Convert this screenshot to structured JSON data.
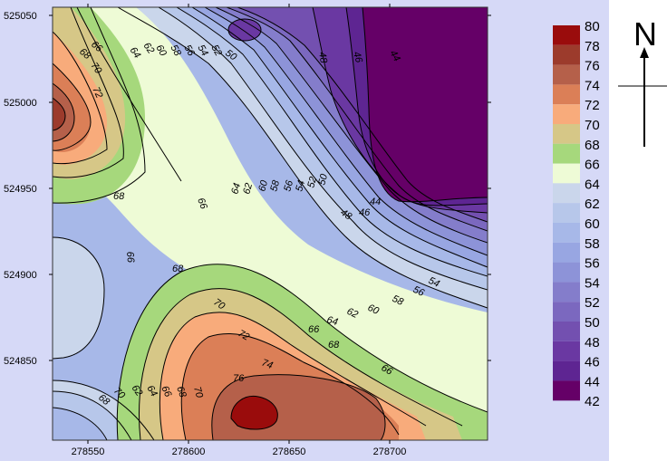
{
  "map": {
    "x_ticks": [
      "278550",
      "278600",
      "278650",
      "278700"
    ],
    "y_ticks": [
      "525050",
      "525000",
      "524950",
      "524900",
      "524850"
    ],
    "north_label": "N",
    "contour_labels": [
      "68",
      "66",
      "64",
      "62",
      "60",
      "58",
      "56",
      "54",
      "52",
      "50",
      "48",
      "46",
      "44",
      "70",
      "72",
      "68",
      "66",
      "64",
      "62",
      "60",
      "58",
      "56",
      "54",
      "52",
      "50",
      "48",
      "46",
      "44",
      "68",
      "66",
      "66",
      "68",
      "70",
      "72",
      "74",
      "76",
      "54",
      "56",
      "58",
      "60",
      "62",
      "64",
      "66",
      "68",
      "70",
      "62",
      "64",
      "66",
      "68",
      "70",
      "72",
      "74"
    ]
  },
  "legend": {
    "levels": [
      {
        "label": "80",
        "color": "#9a0c0c"
      },
      {
        "label": "78",
        "color": "#9c3b2c"
      },
      {
        "label": "76",
        "color": "#b5604a"
      },
      {
        "label": "74",
        "color": "#db7f57"
      },
      {
        "label": "72",
        "color": "#f8ab7b"
      },
      {
        "label": "70",
        "color": "#d6c787"
      },
      {
        "label": "68",
        "color": "#a6d87c"
      },
      {
        "label": "66",
        "color": "#eefbd6"
      },
      {
        "label": "64",
        "color": "#cad6eb"
      },
      {
        "label": "62",
        "color": "#b7c7ea"
      },
      {
        "label": "60",
        "color": "#a7b8e8"
      },
      {
        "label": "58",
        "color": "#98a6e2"
      },
      {
        "label": "56",
        "color": "#8d93d8"
      },
      {
        "label": "54",
        "color": "#847dcb"
      },
      {
        "label": "52",
        "color": "#7b68bf"
      },
      {
        "label": "50",
        "color": "#7350b0"
      },
      {
        "label": "48",
        "color": "#6a38a2"
      },
      {
        "label": "46",
        "color": "#5e2592"
      },
      {
        "label": "44",
        "color": "#521681"
      },
      {
        "label": "42",
        "color": "#650067"
      }
    ]
  }
}
